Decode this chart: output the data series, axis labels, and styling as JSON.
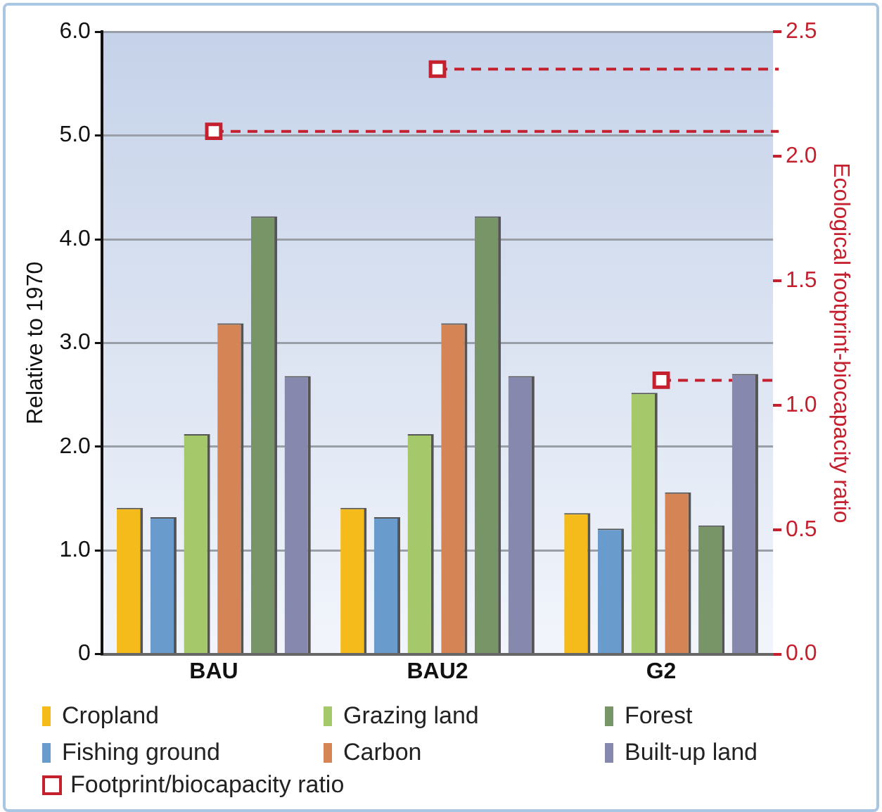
{
  "chart_data": {
    "type": "bar",
    "categories": [
      "BAU",
      "BAU2",
      "G2"
    ],
    "ylabel": "Relative to 1970",
    "y2label": "Ecological footprint-biocapacity ratio",
    "ylim": [
      0,
      6
    ],
    "yticks": [
      0,
      {
        "value": 1,
        "label": "1.0"
      },
      {
        "value": 2,
        "label": "2.0"
      },
      {
        "value": 3,
        "label": "3.0"
      },
      {
        "value": 4,
        "label": "4.0"
      },
      {
        "value": 5,
        "label": "5.0"
      },
      {
        "value": 6,
        "label": "6.0"
      }
    ],
    "y2lim": [
      0,
      2.5
    ],
    "y2ticks": [
      {
        "value": 0,
        "label": "0.0"
      },
      0.5,
      {
        "value": 1,
        "label": "1.0"
      },
      1.5,
      {
        "value": 2,
        "label": "2.0"
      },
      2.5
    ],
    "grid": "y",
    "legend": "bottom",
    "ref_lines": [
      {
        "axis": "y2",
        "value": 2.1,
        "color": "#c4202e",
        "line_style": "dashed"
      },
      {
        "axis": "y2",
        "value": 2.35,
        "color": "#c4202e",
        "line_style": "dashed"
      },
      {
        "axis": "y2",
        "value": 1.1,
        "color": "#c4202e",
        "line_style": "dashed"
      }
    ],
    "series": [
      {
        "name": "Cropland",
        "color": "#f5bb1a",
        "values": [
          1.41,
          1.41,
          1.36
        ]
      },
      {
        "name": "Fishing ground",
        "color": "#6a9bcd",
        "values": [
          1.32,
          1.32,
          1.21
        ]
      },
      {
        "name": "Grazing land",
        "color": "#a5c86a",
        "values": [
          2.12,
          2.12,
          2.52
        ]
      },
      {
        "name": "Carbon",
        "color": "#d58555",
        "values": [
          3.19,
          3.19,
          1.56
        ]
      },
      {
        "name": "Forest",
        "color": "#789568",
        "values": [
          4.22,
          4.22,
          1.24
        ]
      },
      {
        "name": "Built-up land",
        "color": "#8688ad",
        "values": [
          2.68,
          2.68,
          2.7
        ]
      },
      {
        "name": "Footprint/biocapacity ratio",
        "type": "scatter",
        "axis": "y2",
        "marker": "square",
        "color": "#c4202e",
        "x": [
          "BAU",
          "BAU2",
          "G2"
        ],
        "values": [
          2.1,
          2.35,
          1.1
        ]
      }
    ]
  }
}
